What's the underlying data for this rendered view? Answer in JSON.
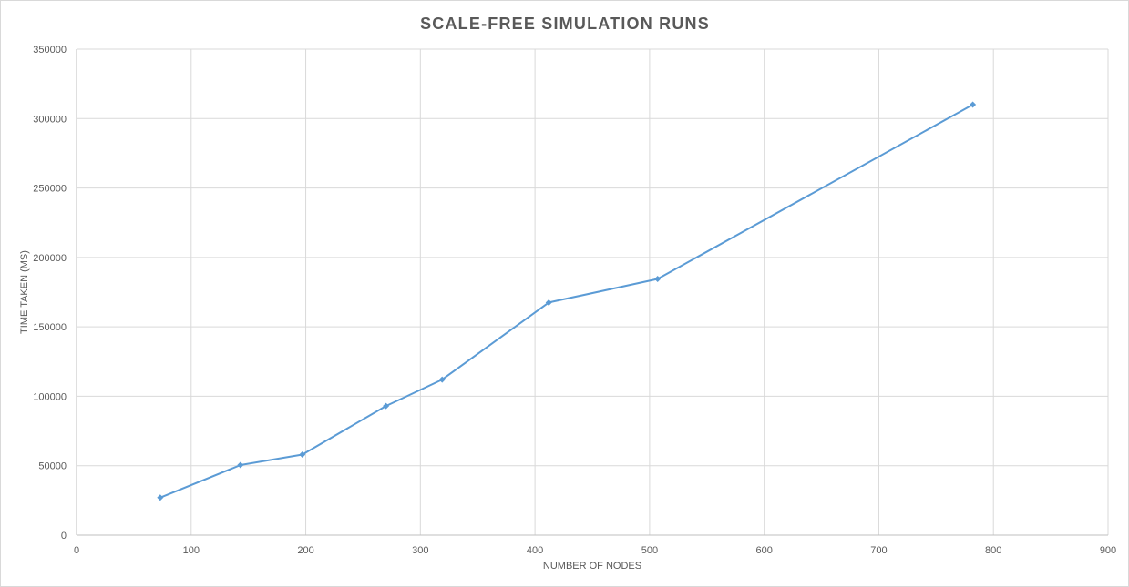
{
  "chart_data": {
    "type": "line",
    "title": "SCALE-FREE SIMULATION RUNS",
    "xlabel": "NUMBER OF NODES",
    "ylabel": "TIME TAKEN (MS)",
    "xlim": [
      0,
      900
    ],
    "ylim": [
      0,
      350000
    ],
    "x_ticks": [
      "0",
      "100",
      "200",
      "300",
      "400",
      "500",
      "600",
      "700",
      "800",
      "900"
    ],
    "y_ticks": [
      "0",
      "50000",
      "100000",
      "150000",
      "200000",
      "250000",
      "300000",
      "350000"
    ],
    "grid": true,
    "legend": "none",
    "series": [
      {
        "color": "#5b9bd5",
        "x": [
          73,
          143,
          197,
          270,
          319,
          412,
          507,
          782
        ],
        "y": [
          27000,
          50500,
          58000,
          93000,
          112000,
          167500,
          184500,
          310000
        ]
      }
    ]
  }
}
